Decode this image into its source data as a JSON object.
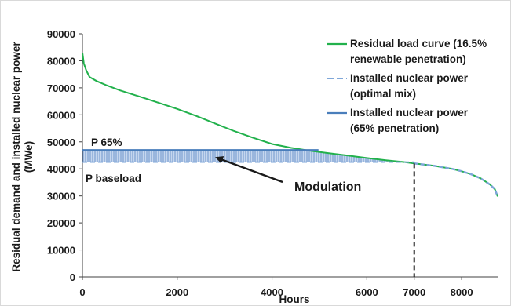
{
  "chart_data": {
    "type": "line",
    "xlabel": "Hours",
    "ylabel_line1": "Residual demand and installed nuclear power",
    "ylabel_line2": "(MWe)",
    "xlim": [
      0,
      8760
    ],
    "ylim": [
      0,
      90000
    ],
    "x_ticks": [
      0,
      2000,
      4000,
      6000,
      7000,
      8000
    ],
    "x_tick_labels": [
      "0",
      "2000",
      "4000",
      "6000",
      "7000",
      "8000"
    ],
    "y_ticks": [
      0,
      10000,
      20000,
      30000,
      40000,
      50000,
      60000,
      70000,
      80000,
      90000
    ],
    "y_tick_labels": [
      "0",
      "10000",
      "20000",
      "30000",
      "40000",
      "50000",
      "60000",
      "70000",
      "80000",
      "90000"
    ],
    "grid": false,
    "legend_position": "top-right",
    "legend": [
      {
        "line1": "Residual load curve (16.5%",
        "line2": "renewable penetration)",
        "style": "solid",
        "color": "#22b14c"
      },
      {
        "line1": "Installed nuclear power",
        "line2": "(optimal mix)",
        "style": "dashed",
        "color": "#7fa7d9"
      },
      {
        "line1": "Installed nuclear power",
        "line2": "(65% penetration)",
        "style": "solid",
        "color": "#4a7ebb"
      }
    ],
    "series": [
      {
        "name": "Residual load curve (16.5% renewable penetration)",
        "color": "#22b14c",
        "x": [
          0,
          30,
          80,
          150,
          300,
          500,
          800,
          1200,
          1600,
          2000,
          2400,
          2800,
          3200,
          3600,
          4000,
          4400,
          4800,
          5200,
          5600,
          6000,
          6400,
          6800,
          7000,
          7400,
          7800,
          8000,
          8200,
          8400,
          8600,
          8700,
          8760
        ],
        "y": [
          83000,
          79000,
          76500,
          74000,
          72500,
          71000,
          69000,
          66800,
          64500,
          62200,
          59600,
          56800,
          54000,
          51500,
          49200,
          47800,
          46700,
          45800,
          44900,
          44000,
          43200,
          42500,
          42000,
          41200,
          40000,
          39100,
          38000,
          36500,
          34200,
          32500,
          29800
        ]
      },
      {
        "name": "Installed nuclear power (optimal mix)",
        "color": "#7fa7d9",
        "style": "dashed",
        "x": [
          0,
          7000
        ],
        "y": [
          42500,
          42500
        ]
      },
      {
        "name": "Installed nuclear power (65% penetration)",
        "color": "#4a7ebb",
        "x": [
          0,
          4980
        ],
        "y": [
          47000,
          47000
        ]
      }
    ],
    "annotations": {
      "p65": "P 65%",
      "pbase": "P baseload",
      "modulation": "Modulation",
      "vline_x": 7000
    }
  }
}
